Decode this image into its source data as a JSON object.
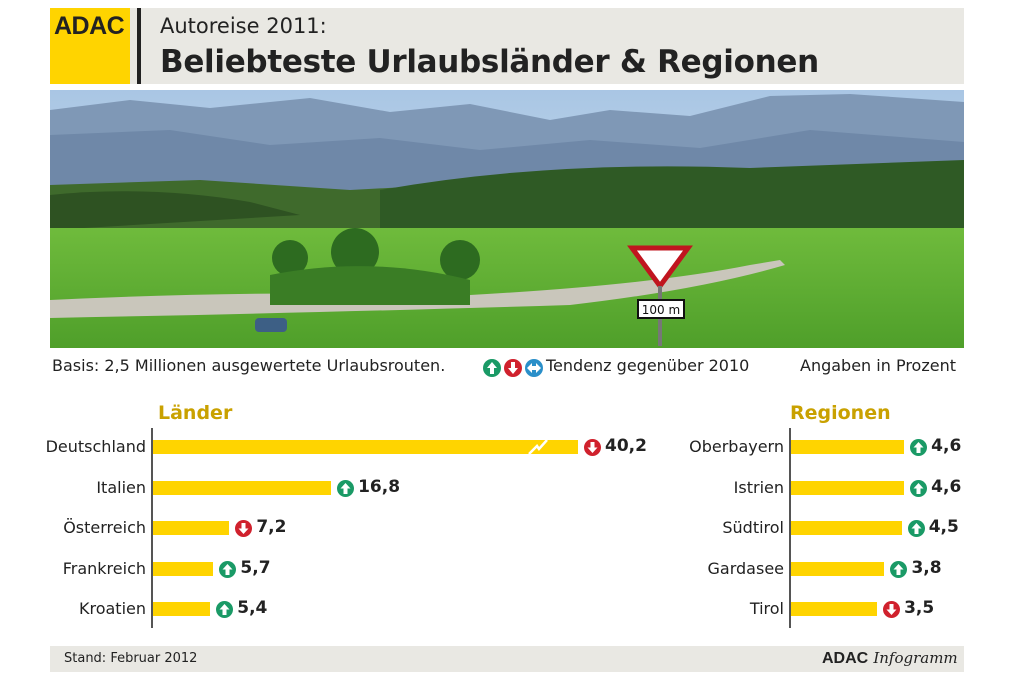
{
  "header": {
    "logo": "ADAC",
    "kicker": "Autoreise 2011:",
    "title": "Beliebteste Urlaubsländer & Regionen"
  },
  "basis": "Basis: 2,5 Millionen ausgewertete Urlaubsrouten.",
  "legend": {
    "text": "Tendenz gegenüber 2010",
    "icons": [
      "arrow-up-icon",
      "arrow-down-icon",
      "arrow-left-right-icon"
    ]
  },
  "unit_note": "Angaben in Prozent",
  "photo": {
    "sign_text": "100 m"
  },
  "footer": {
    "stand": "Stand: Februar 2012",
    "brand_bold": "ADAC",
    "brand_italic": "Infogramm"
  },
  "colors": {
    "bar": "#ffd400",
    "up": "#1a9a66",
    "down": "#d0212d",
    "same": "#2a8fc9",
    "heading": "#c9a100"
  },
  "chart_data": [
    {
      "type": "bar",
      "orientation": "horizontal",
      "title": "Länder",
      "categories": [
        "Deutschland",
        "Italien",
        "Österreich",
        "Frankreich",
        "Kroatien"
      ],
      "values": [
        40.2,
        16.8,
        7.2,
        5.7,
        5.4
      ],
      "labels": [
        "40,2",
        "16,8",
        "7,2",
        "5,7",
        "5,4"
      ],
      "trend": [
        "down",
        "up",
        "down",
        "up",
        "up"
      ],
      "axis_break_on": "Deutschland"
    },
    {
      "type": "bar",
      "orientation": "horizontal",
      "title": "Regionen",
      "categories": [
        "Oberbayern",
        "Istrien",
        "Südtirol",
        "Gardasee",
        "Tirol"
      ],
      "values": [
        4.6,
        4.6,
        4.5,
        3.8,
        3.5
      ],
      "labels": [
        "4,6",
        "4,6",
        "4,5",
        "3,8",
        "3,5"
      ],
      "trend": [
        "up",
        "up",
        "up",
        "up",
        "down"
      ]
    }
  ]
}
